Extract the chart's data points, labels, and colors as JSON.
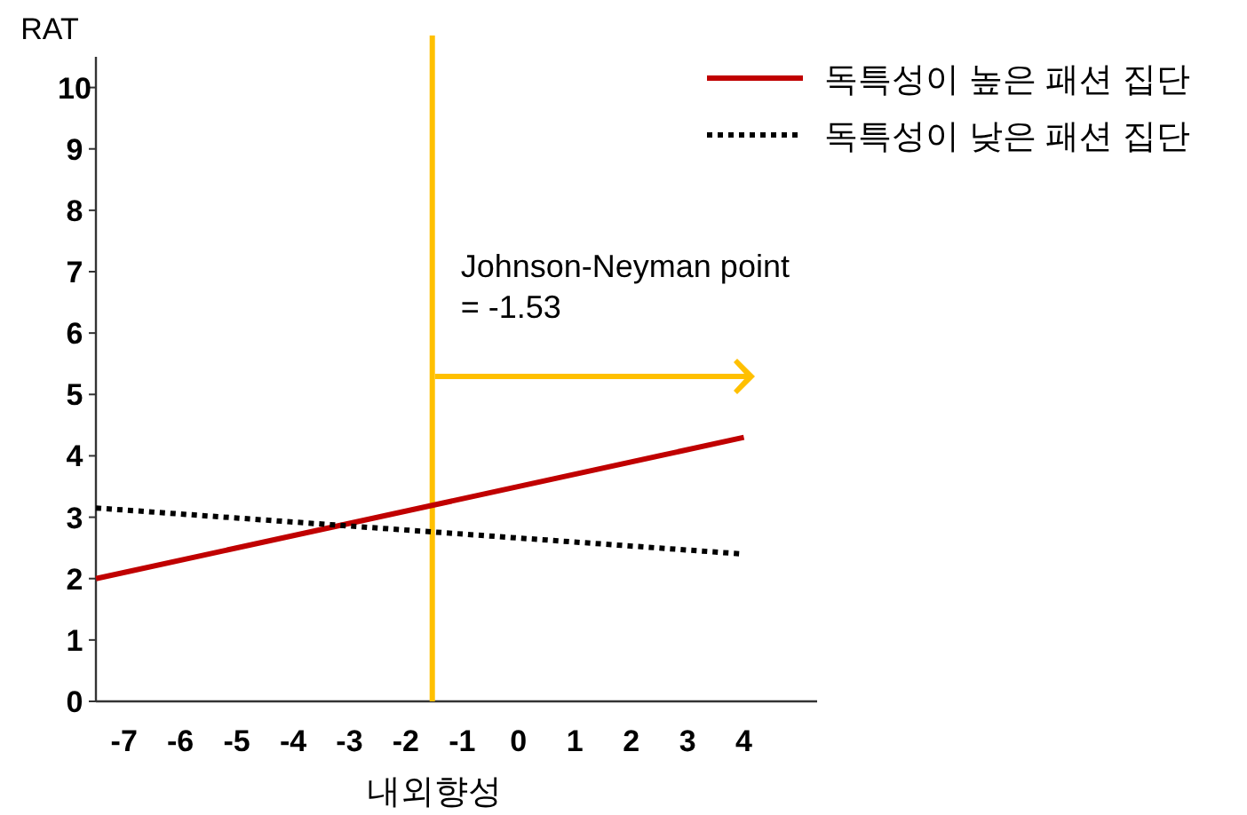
{
  "chart_data": {
    "type": "line",
    "ylabel": "RAT",
    "xlabel": "내외향성",
    "xlim": [
      -7.5,
      5.3
    ],
    "xticks": [
      -7,
      -6,
      -5,
      -4,
      -3,
      -2,
      -1,
      0,
      1,
      2,
      3,
      4
    ],
    "ylim": [
      0,
      10.5
    ],
    "yticks": [
      0,
      1,
      2,
      3,
      4,
      5,
      6,
      7,
      8,
      9,
      10
    ],
    "grid": false,
    "legend": "top right",
    "x": [
      -7.5,
      4
    ],
    "series": [
      {
        "name": "독특성이 높은 패션 집단",
        "color": "#c00000",
        "line_style": "solid",
        "values": [
          2.0,
          4.3
        ]
      },
      {
        "name": "독특성이 낮은 패션 집단",
        "color": "#000000",
        "line_style": "dotted",
        "values": [
          3.15,
          2.4
        ]
      }
    ],
    "ref_lines": [
      {
        "axis": "x",
        "value": -1.53,
        "label": "Johnson-Neyman point\n= -1.53",
        "color": "#ffc000",
        "line_style": "solid"
      }
    ]
  }
}
